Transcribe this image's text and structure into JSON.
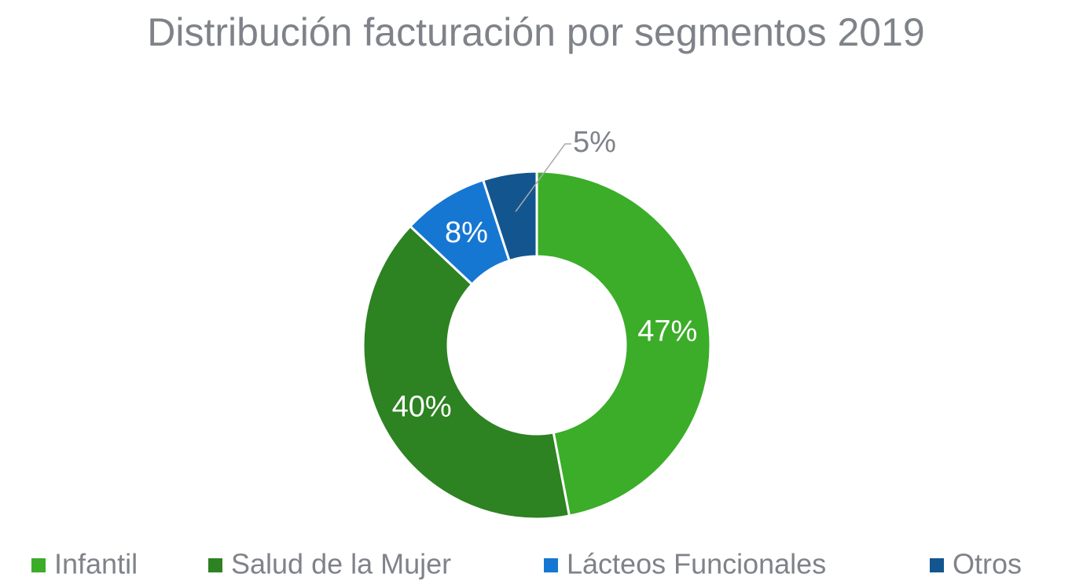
{
  "chart_data": {
    "type": "donut",
    "title": "Distribución facturación por segmentos 2019",
    "categories": [
      "Infantil",
      "Salud de la Mujer",
      "Lácteos Funcionales",
      "Otros"
    ],
    "values": [
      47,
      40,
      8,
      5
    ],
    "value_labels": [
      "47%",
      "40%",
      "8%",
      "5%"
    ],
    "colors": [
      "#3bad29",
      "#2d8222",
      "#1677d3",
      "#13558f"
    ],
    "legend": "bottom"
  }
}
